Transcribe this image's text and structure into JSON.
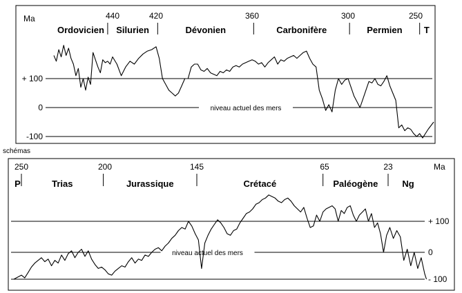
{
  "corner_label": "schémas",
  "chart_data": [
    {
      "type": "line",
      "unit_label": "Ma",
      "x_ticks": [
        440,
        420,
        360,
        300,
        250
      ],
      "xlim": [
        490,
        245
      ],
      "periods": [
        {
          "name": "Ordovicien",
          "start": 488,
          "end": 444
        },
        {
          "name": "Silurien",
          "start": 444,
          "end": 419
        },
        {
          "name": "Dévonien",
          "start": 419,
          "end": 359
        },
        {
          "name": "Carbonifère",
          "start": 359,
          "end": 299
        },
        {
          "name": "Permien",
          "start": 299,
          "end": 252
        },
        {
          "name": "T",
          "start": 252,
          "end": 245
        }
      ],
      "y_ticks": [
        {
          "value": 100,
          "label": "+ 100"
        },
        {
          "value": 0,
          "label": "0"
        },
        {
          "value": -100,
          "label": "-100"
        }
      ],
      "ylim": [
        -110,
        230
      ],
      "zero_line_label": "niveau actuel des mers",
      "series": [
        {
          "x": [
            488,
            486,
            484,
            482,
            480,
            478,
            476,
            474,
            472,
            470,
            468,
            466,
            464,
            462,
            460,
            458,
            456,
            454,
            452,
            450,
            448,
            446,
            444,
            442,
            440,
            438,
            436,
            434,
            432,
            430,
            428,
            426,
            424,
            422,
            420,
            418,
            416,
            414,
            412,
            410,
            408,
            406,
            404,
            402,
            400,
            398,
            396,
            394,
            392,
            390,
            388,
            386,
            384,
            382,
            380,
            378,
            376,
            374,
            372,
            370,
            368,
            366,
            364,
            362,
            360,
            358,
            356,
            354,
            352,
            350,
            348,
            346,
            344,
            342,
            340,
            338,
            336,
            334,
            332,
            330,
            328,
            326,
            324,
            322,
            320,
            318,
            316,
            314,
            312,
            310,
            308,
            306,
            304,
            302,
            300,
            298,
            296,
            294,
            292,
            290,
            288,
            286,
            284,
            282,
            280,
            278,
            276,
            274,
            272,
            270,
            268,
            266,
            264,
            262,
            260,
            258,
            256,
            254,
            252,
            250,
            248,
            246
          ],
          "y": [
            180,
            160,
            200,
            175,
            215,
            180,
            205,
            170,
            150,
            110,
            135,
            70,
            100,
            60,
            105,
            80,
            190,
            165,
            140,
            120,
            165,
            155,
            160,
            150,
            175,
            150,
            110,
            140,
            160,
            150,
            170,
            185,
            195,
            200,
            210,
            170,
            100,
            80,
            60,
            50,
            40,
            50,
            75,
            100,
            100,
            140,
            150,
            150,
            130,
            125,
            135,
            120,
            115,
            110,
            125,
            120,
            130,
            125,
            140,
            145,
            140,
            150,
            155,
            160,
            165,
            160,
            150,
            155,
            140,
            155,
            165,
            175,
            150,
            165,
            160,
            170,
            175,
            180,
            170,
            180,
            190,
            195,
            170,
            150,
            140,
            60,
            30,
            -10,
            10,
            -15,
            60,
            100,
            80,
            95,
            100,
            70,
            40,
            20,
            0,
            30,
            60,
            90,
            85,
            100,
            80,
            75,
            90,
            110,
            75,
            50,
            25,
            -70,
            -60,
            -80,
            -70,
            -75,
            -90,
            -100,
            -90,
            -105,
            -75,
            -50
          ]
        }
      ]
    },
    {
      "type": "line",
      "unit_label": "Ma",
      "x_ticks": [
        250,
        200,
        145,
        65,
        23
      ],
      "xlim": [
        252,
        0
      ],
      "periods": [
        {
          "name": "P",
          "start": 252,
          "end": 250
        },
        {
          "name": "Trias",
          "start": 250,
          "end": 201
        },
        {
          "name": "Jurassique",
          "start": 201,
          "end": 145
        },
        {
          "name": "Crétacé",
          "start": 145,
          "end": 66
        },
        {
          "name": "Paléogène",
          "start": 66,
          "end": 23
        },
        {
          "name": "Ng",
          "start": 23,
          "end": 0
        }
      ],
      "y_ticks": [
        {
          "value": 100,
          "label": "+ 100"
        },
        {
          "value": 0,
          "label": "0"
        },
        {
          "value": -100,
          "label": "- 100"
        }
      ],
      "ylim": [
        -110,
        280
      ],
      "zero_line_label": "niveau actuel des mers",
      "series": [
        {
          "x": [
            252,
            250,
            248,
            246,
            244,
            242,
            240,
            238,
            236,
            234,
            232,
            230,
            228,
            226,
            224,
            222,
            220,
            218,
            216,
            214,
            212,
            210,
            208,
            206,
            204,
            202,
            200,
            198,
            196,
            194,
            192,
            190,
            188,
            186,
            184,
            182,
            180,
            178,
            176,
            174,
            172,
            170,
            168,
            166,
            164,
            162,
            160,
            158,
            156,
            154,
            152,
            150,
            148,
            146,
            144,
            142,
            140,
            138,
            136,
            134,
            132,
            130,
            128,
            126,
            124,
            122,
            120,
            118,
            116,
            114,
            112,
            110,
            108,
            106,
            104,
            102,
            100,
            98,
            96,
            94,
            92,
            90,
            88,
            86,
            84,
            82,
            80,
            78,
            76,
            74,
            72,
            70,
            68,
            66,
            64,
            62,
            60,
            58,
            56,
            54,
            52,
            50,
            48,
            46,
            44,
            42,
            40,
            38,
            36,
            34,
            32,
            30,
            28,
            26,
            24,
            22,
            20,
            18,
            16,
            14,
            12,
            10,
            8,
            6,
            4,
            2,
            1
          ],
          "y": [
            -100,
            -85,
            -95,
            -75,
            -55,
            -40,
            -30,
            -20,
            -35,
            -25,
            -50,
            -30,
            -40,
            -10,
            -30,
            -5,
            5,
            -20,
            0,
            10,
            -15,
            5,
            -25,
            -45,
            -60,
            -55,
            -65,
            -80,
            -85,
            -70,
            -60,
            -50,
            -55,
            -35,
            -20,
            -40,
            -25,
            -30,
            -10,
            -15,
            0,
            10,
            15,
            5,
            20,
            30,
            45,
            55,
            70,
            80,
            75,
            100,
            85,
            60,
            40,
            -60,
            30,
            55,
            75,
            90,
            105,
            95,
            80,
            60,
            55,
            70,
            75,
            95,
            110,
            125,
            130,
            140,
            155,
            160,
            170,
            175,
            185,
            180,
            175,
            165,
            160,
            170,
            175,
            165,
            150,
            140,
            130,
            145,
            110,
            80,
            85,
            120,
            100,
            130,
            140,
            145,
            150,
            140,
            100,
            135,
            125,
            145,
            150,
            120,
            100,
            120,
            130,
            140,
            100,
            125,
            80,
            95,
            60,
            0,
            55,
            80,
            45,
            70,
            50,
            -30,
            10,
            -50,
            0,
            -60,
            -20,
            -80,
            -100
          ]
        }
      ]
    }
  ]
}
